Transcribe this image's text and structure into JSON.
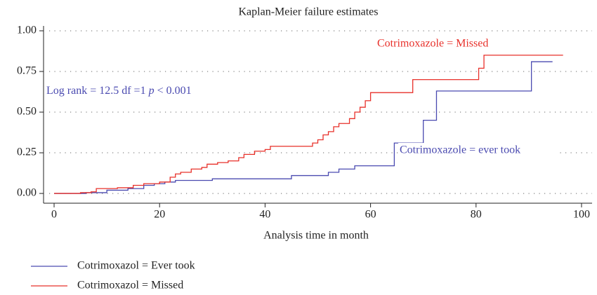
{
  "chart_data": {
    "type": "step",
    "title": "Kaplan-Meier failure estimates",
    "x_label": "Analysis time in month",
    "xlim": [
      -2,
      102
    ],
    "xticks": [
      0,
      20,
      40,
      60,
      80,
      100
    ],
    "ylim": [
      -0.06,
      1.03
    ],
    "yticks": [
      {
        "value": 0,
        "label": "0.00"
      },
      0.25,
      {
        "value": 0.5,
        "label": "0.50"
      },
      0.75,
      {
        "value": 1,
        "label": "1.00"
      }
    ],
    "grid": true,
    "annotations": [
      {
        "text": "Cotrimoxazole = Missed",
        "color": "#e8302a"
      },
      {
        "text": [
          "Log rank = 12.5 df =1 ",
          "p",
          " < 0.001"
        ],
        "color": "#4a4ab0"
      },
      {
        "text": "Cotrimoxazole = ever took",
        "color": "#4a4ab0"
      }
    ],
    "series": [
      {
        "name": "Cotrimoxazol = Ever took",
        "color": "#4a4ab0",
        "x": [
          0,
          6,
          10,
          14,
          17,
          19,
          21,
          23,
          30,
          45,
          52,
          54,
          57,
          64.5,
          70,
          72.5,
          90.5,
          94.5
        ],
        "values": [
          0,
          0.005,
          0.02,
          0.03,
          0.05,
          0.06,
          0.07,
          0.08,
          0.09,
          0.11,
          0.13,
          0.15,
          0.17,
          0.31,
          0.45,
          0.63,
          0.81,
          0.81
        ]
      },
      {
        "name": "Cotrimoxazol = Missed",
        "color": "#e8302a",
        "x": [
          0,
          5,
          7,
          8,
          12,
          15,
          17,
          20,
          22,
          23,
          24,
          26,
          28,
          29,
          31,
          33,
          35,
          36,
          38,
          40,
          41,
          49,
          50,
          51,
          52,
          53,
          54,
          56,
          57,
          58,
          59,
          60,
          68,
          80.5,
          81.5,
          96.5
        ],
        "values": [
          0,
          0.005,
          0.01,
          0.03,
          0.035,
          0.05,
          0.06,
          0.07,
          0.1,
          0.12,
          0.13,
          0.15,
          0.16,
          0.18,
          0.19,
          0.2,
          0.22,
          0.24,
          0.26,
          0.27,
          0.29,
          0.31,
          0.33,
          0.36,
          0.38,
          0.41,
          0.43,
          0.46,
          0.5,
          0.53,
          0.57,
          0.62,
          0.7,
          0.77,
          0.85,
          0.85
        ]
      }
    ]
  }
}
